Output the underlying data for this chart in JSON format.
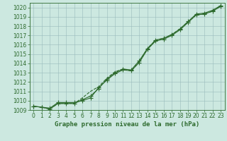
{
  "x": [
    0,
    1,
    2,
    3,
    4,
    5,
    6,
    7,
    8,
    9,
    10,
    11,
    12,
    13,
    14,
    15,
    16,
    17,
    18,
    19,
    20,
    21,
    22,
    23
  ],
  "line1": [
    1009.4,
    1009.3,
    1009.2,
    1009.8,
    1009.8,
    1009.8,
    1010.0,
    1010.3,
    1011.4,
    1012.2,
    1012.9,
    1013.3,
    1013.2,
    1014.1,
    1015.5,
    1016.4,
    1016.6,
    1017.0,
    1017.6,
    1018.4,
    1019.2,
    1019.3,
    1019.6,
    1020.1
  ],
  "line2": [
    1009.4,
    1009.3,
    1009.1,
    1009.7,
    1009.7,
    1009.7,
    1010.1,
    1010.5,
    1011.3,
    1012.3,
    1013.0,
    1013.4,
    1013.3,
    1014.3,
    1015.6,
    1016.5,
    1016.7,
    1017.1,
    1017.7,
    1018.5,
    1019.3,
    1019.4,
    1019.7,
    1020.2
  ],
  "line3_sparse_x": [
    0,
    1,
    2,
    3,
    4,
    5,
    6,
    7,
    8,
    9,
    10,
    11,
    12,
    13,
    14,
    15,
    16,
    17,
    18,
    19,
    20,
    21,
    22,
    23
  ],
  "line3": [
    1009.4,
    1009.3,
    1009.1,
    1009.7,
    1009.7,
    1009.7,
    1010.3,
    1011.0,
    1011.5,
    1012.4,
    1013.1,
    1013.4,
    1013.2,
    1014.2,
    1015.6,
    1016.5,
    1016.7,
    1017.1,
    1017.7,
    1018.5,
    1019.2,
    1019.3,
    1019.6,
    1020.2
  ],
  "ylim_min": 1009.0,
  "ylim_max": 1020.5,
  "yticks": [
    1009,
    1010,
    1011,
    1012,
    1013,
    1014,
    1015,
    1016,
    1017,
    1018,
    1019,
    1020
  ],
  "xlim_min": -0.5,
  "xlim_max": 23.5,
  "xticks": [
    0,
    1,
    2,
    3,
    4,
    5,
    6,
    7,
    8,
    9,
    10,
    11,
    12,
    13,
    14,
    15,
    16,
    17,
    18,
    19,
    20,
    21,
    22,
    23
  ],
  "xlabel": "Graphe pression niveau de la mer (hPa)",
  "line_color": "#2d6a2d",
  "bg_color": "#cce8e0",
  "grid_color": "#99bbbb",
  "marker": "+",
  "marker_size": 4.0,
  "line_width": 0.8,
  "xlabel_fontsize": 6.5,
  "tick_fontsize": 5.5,
  "tick_color": "#2d6a2d",
  "label_color": "#2d6a2d",
  "fig_width": 3.2,
  "fig_height": 2.0
}
